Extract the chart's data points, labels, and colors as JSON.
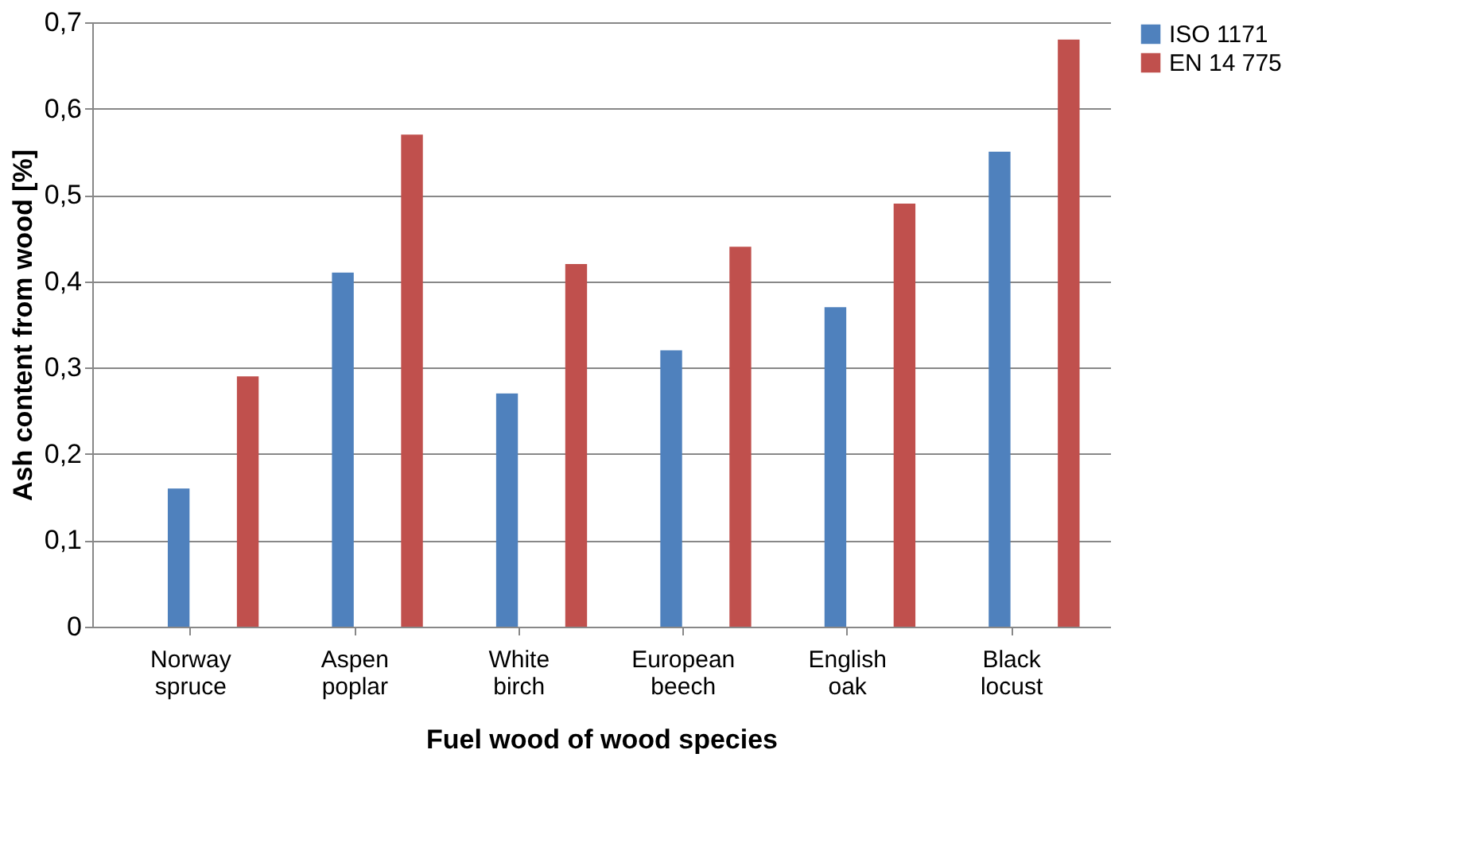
{
  "chart_data": {
    "type": "bar",
    "xlabel": "Fuel wood of wood species",
    "ylabel": "Ash content from wood [%]",
    "categories": [
      "Norway spruce",
      "Aspen poplar",
      "White birch",
      "European beech",
      "English oak",
      "Black locust"
    ],
    "series": [
      {
        "name": "ISO 1171",
        "color": "#4f81bd",
        "values": [
          0.16,
          0.41,
          0.27,
          0.32,
          0.37,
          0.55
        ]
      },
      {
        "name": "EN 14 775",
        "color": "#c0504d",
        "values": [
          0.29,
          0.57,
          0.42,
          0.44,
          0.49,
          0.68
        ]
      }
    ],
    "ylim": [
      0,
      0.7
    ],
    "yticks": [
      {
        "value": 0,
        "label": "0"
      },
      {
        "value": 0.1,
        "label": "0,1"
      },
      {
        "value": 0.2,
        "label": "0,2"
      },
      {
        "value": 0.3,
        "label": "0,3"
      },
      {
        "value": 0.4,
        "label": "0,4"
      },
      {
        "value": 0.5,
        "label": "0,5"
      },
      {
        "value": 0.6,
        "label": "0,6"
      },
      {
        "value": 0.7,
        "label": "0,7"
      }
    ],
    "grid": "y",
    "legend": "right"
  }
}
